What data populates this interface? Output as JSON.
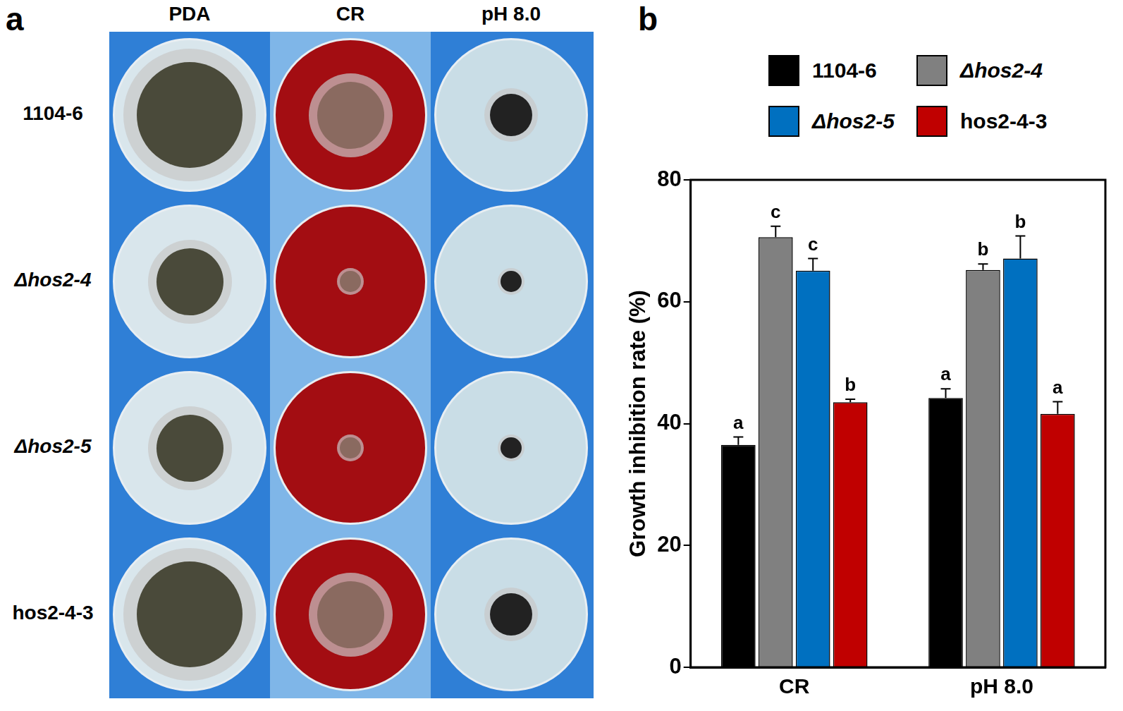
{
  "figure": {
    "panel_labels": [
      "a",
      "b"
    ],
    "plates": {
      "columns": [
        "PDA",
        "CR",
        "pH 8.0"
      ],
      "rows": [
        "1104-6",
        "Δhos2-4",
        "Δhos2-5",
        "hos2-4-3"
      ]
    }
  },
  "chart_data": {
    "type": "bar",
    "categories": [
      "CR",
      "pH 8.0"
    ],
    "y_label": "Growth inhibition rate (%)",
    "ylim": [
      0,
      80
    ],
    "yticks": [
      0,
      20,
      40,
      60,
      80
    ],
    "grid": false,
    "legend": "top",
    "series": [
      {
        "name": "1104-6",
        "color": "#000000",
        "values": [
          36.5,
          44.2
        ],
        "errors": [
          1.3,
          1.5
        ],
        "letters": [
          "a",
          "a"
        ]
      },
      {
        "name": "Δhos2-4",
        "color": "#808080",
        "values": [
          70.6,
          65.2
        ],
        "errors": [
          1.8,
          1.0
        ],
        "letters": [
          "c",
          "b"
        ]
      },
      {
        "name": "Δhos2-5",
        "color": "#0070c0",
        "values": [
          65.1,
          67.1
        ],
        "errors": [
          2.0,
          3.7
        ],
        "letters": [
          "c",
          "b"
        ]
      },
      {
        "name": "hos2-4-3",
        "color": "#c00000",
        "values": [
          43.5,
          41.6
        ],
        "errors": [
          0.5,
          2.0
        ],
        "letters": [
          "b",
          "a"
        ]
      }
    ]
  }
}
